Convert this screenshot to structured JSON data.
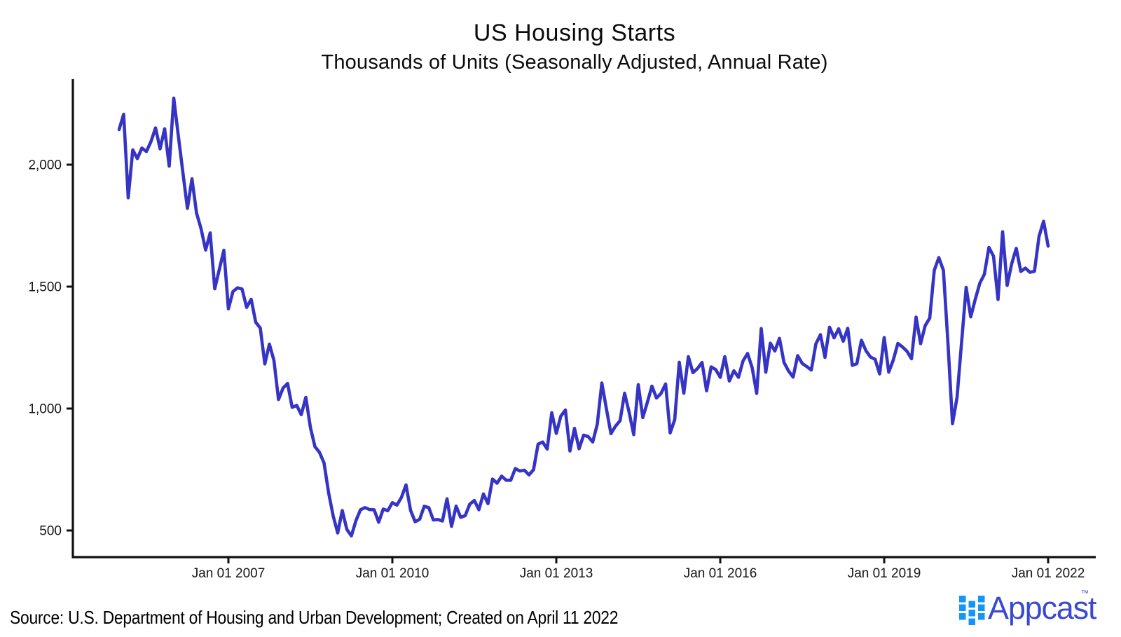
{
  "chart": {
    "title": "US Housing Starts",
    "subtitle": "Thousands of Units (Seasonally Adjusted, Annual Rate)"
  },
  "chart_data": {
    "type": "line",
    "title": "US Housing Starts",
    "subtitle": "Thousands of Units (Seasonally Adjusted, Annual Rate)",
    "unit": "thousands of units, seasonally adjusted annual rate",
    "frequency": "monthly",
    "x_range": [
      "2005-01",
      "2022-01"
    ],
    "ylim": [
      390,
      2360
    ],
    "grid": false,
    "legend": "none",
    "line_color": "#3634c4",
    "axis_color": "#111111",
    "y_ticks": [
      {
        "label": "500",
        "value": 500
      },
      {
        "label": "1,000",
        "value": 1000
      },
      {
        "label": "1,500",
        "value": 1500
      },
      {
        "label": "2,000",
        "value": 2000
      }
    ],
    "x_ticks": [
      {
        "label": "Jan 01 2007",
        "month_index": 24
      },
      {
        "label": "Jan 01 2010",
        "month_index": 60
      },
      {
        "label": "Jan 01 2013",
        "month_index": 96
      },
      {
        "label": "Jan 01 2016",
        "month_index": 132
      },
      {
        "label": "Jan 01 2019",
        "month_index": 168
      },
      {
        "label": "Jan 01 2022",
        "month_index": 204
      }
    ],
    "series": [
      {
        "name": "US Housing Starts",
        "start": "2005-01",
        "values": [
          2144,
          2207,
          1864,
          2061,
          2025,
          2068,
          2054,
          2095,
          2151,
          2065,
          2147,
          1994,
          2273,
          2119,
          1969,
          1821,
          1942,
          1802,
          1737,
          1650,
          1720,
          1491,
          1570,
          1649,
          1409,
          1480,
          1495,
          1490,
          1415,
          1448,
          1354,
          1330,
          1183,
          1264,
          1197,
          1037,
          1084,
          1103,
          1005,
          1013,
          975,
          1046,
          923,
          844,
          820,
          777,
          655,
          560,
          490,
          582,
          505,
          478,
          540,
          585,
          594,
          586,
          585,
          534,
          588,
          581,
          614,
          604,
          636,
          687,
          583,
          536,
          546,
          599,
          594,
          543,
          545,
          539,
          630,
          517,
          600,
          554,
          561,
          608,
          623,
          585,
          650,
          610,
          711,
          694,
          723,
          706,
          706,
          754,
          744,
          747,
          728,
          749,
          854,
          863,
          834,
          983,
          898,
          969,
          994,
          826,
          919,
          835,
          891,
          885,
          863,
          936,
          1105,
          999,
          897,
          928,
          950,
          1063,
          984,
          893,
          1098,
          963,
          1026,
          1092,
          1043,
          1062,
          1101,
          900,
          954,
          1190,
          1063,
          1213,
          1147,
          1164,
          1189,
          1073,
          1171,
          1160,
          1128,
          1213,
          1113,
          1155,
          1128,
          1195,
          1226,
          1168,
          1062,
          1328,
          1149,
          1268,
          1236,
          1288,
          1189,
          1154,
          1129,
          1217,
          1185,
          1172,
          1158,
          1265,
          1303,
          1210,
          1334,
          1290,
          1327,
          1276,
          1329,
          1177,
          1184,
          1280,
          1237,
          1211,
          1202,
          1142,
          1291,
          1149,
          1199,
          1267,
          1253,
          1235,
          1204,
          1375,
          1266,
          1340,
          1371,
          1567,
          1619,
          1567,
          1269,
          938,
          1046,
          1273,
          1497,
          1376,
          1448,
          1514,
          1551,
          1661,
          1625,
          1447,
          1725,
          1505,
          1594,
          1657,
          1562,
          1576,
          1559,
          1563,
          1706,
          1768,
          1666
        ]
      }
    ]
  },
  "footer": {
    "source_note": "Source: U.S. Department of Housing and Urban Development; Created on April 11 2022",
    "logo_text": "Appcast",
    "trademark": "™",
    "logo_square_color": "#1496f8",
    "logo_text_color": "#3a49d0"
  }
}
